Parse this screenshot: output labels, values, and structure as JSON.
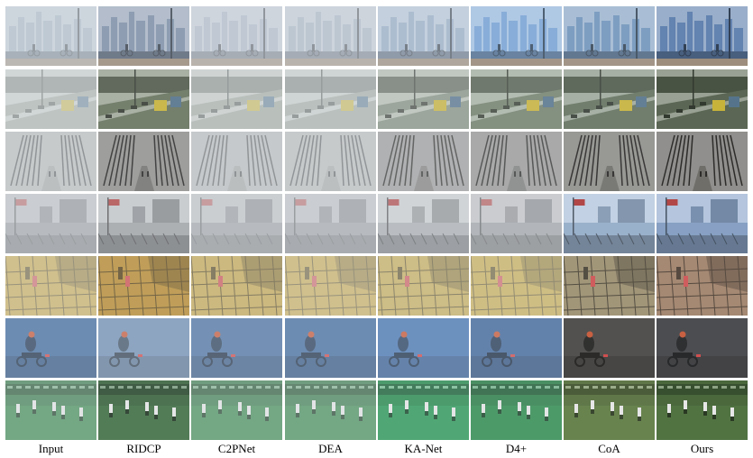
{
  "methods": [
    "Input",
    "RIDCP",
    "C2PNet",
    "DEA",
    "KA-Net",
    "D4+",
    "CoA",
    "Ours"
  ],
  "scenes": [
    {
      "name": "city-skyline-cyclists",
      "kind": "city",
      "colors": [
        "#9fb1c2",
        "#7c8ea7",
        "#a7b5c4",
        "#a3b2c2",
        "#97acc6",
        "#7ba5d6",
        "#6f93bb",
        "#5d7fae"
      ],
      "haze": [
        0.55,
        0.2,
        0.5,
        0.5,
        0.35,
        0.15,
        0.15,
        0.05
      ]
    },
    {
      "name": "highway-bus",
      "kind": "road",
      "colors": [
        "#a9b3a5",
        "#6e7b62",
        "#a5ae9f",
        "#a6b0a2",
        "#92a08d",
        "#7c8b74",
        "#6b7a63",
        "#5e6c55"
      ],
      "haze": [
        0.6,
        0.15,
        0.55,
        0.55,
        0.3,
        0.2,
        0.15,
        0.05
      ]
    },
    {
      "name": "tree-lined-path",
      "kind": "trees",
      "colors": [
        "#8a8a86",
        "#5b5a55",
        "#888884",
        "#8a8a86",
        "#6d6c69",
        "#636260",
        "#56554f",
        "#504e49"
      ],
      "haze": [
        0.55,
        0.15,
        0.55,
        0.55,
        0.3,
        0.25,
        0.1,
        0.05
      ]
    },
    {
      "name": "harbor-flag-buildings",
      "kind": "harbor",
      "colors": [
        "#8e9093",
        "#a7aaae",
        "#8f9194",
        "#8e9093",
        "#b3b5b8",
        "#9c9ea1",
        "#9fb8d6",
        "#8aa6cc"
      ],
      "haze": [
        0.6,
        0.25,
        0.6,
        0.6,
        0.35,
        0.45,
        0.05,
        0.05
      ]
    },
    {
      "name": "scaffold-workers",
      "kind": "scaffold",
      "colors": [
        "#c9a538",
        "#b98a2c",
        "#c7a64a",
        "#c9a538",
        "#c6a94a",
        "#c8a639",
        "#9c8f6e",
        "#a08067"
      ],
      "haze": [
        0.5,
        0.25,
        0.35,
        0.5,
        0.4,
        0.45,
        0.1,
        0.1
      ]
    },
    {
      "name": "motorcycle-rider",
      "kind": "moto",
      "colors": [
        "#3f6a9e",
        "#6d8fb4",
        "#4a72a2",
        "#3f6a9e",
        "#4a78b4",
        "#3d659a",
        "#4b4a48",
        "#45464a"
      ],
      "haze": [
        0.3,
        0.3,
        0.3,
        0.3,
        0.25,
        0.25,
        0.05,
        0.05
      ]
    },
    {
      "name": "football-field",
      "kind": "field",
      "colors": [
        "#3f8a52",
        "#3b6b3e",
        "#3f8a52",
        "#3f8a52",
        "#2f9a5a",
        "#2b8a4c",
        "#5c7a3e",
        "#4a6e3a"
      ],
      "haze": [
        0.35,
        0.15,
        0.35,
        0.35,
        0.2,
        0.2,
        0.1,
        0.05
      ]
    }
  ]
}
